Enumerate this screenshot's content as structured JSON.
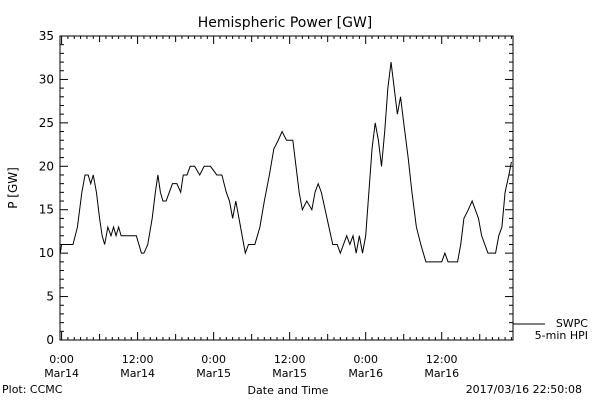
{
  "chart_data": {
    "type": "line",
    "title": "Hemispheric Power [GW]",
    "ylabel": "P [GW]",
    "xlabel": "Date and Time",
    "ylim": [
      0,
      35
    ],
    "xlim": [
      -0.25,
      71.25
    ],
    "yticks": [
      0,
      5,
      10,
      15,
      20,
      25,
      30,
      35
    ],
    "xtick_labels": [
      {
        "hour": 0,
        "time": "0:00",
        "day": "Mar14"
      },
      {
        "hour": 12,
        "time": "12:00",
        "day": "Mar14"
      },
      {
        "hour": 24,
        "time": "0:00",
        "day": "Mar15"
      },
      {
        "hour": 36,
        "time": "12:00",
        "day": "Mar15"
      },
      {
        "hour": 48,
        "time": "0:00",
        "day": "Mar16"
      },
      {
        "hour": 60,
        "time": "12:00",
        "day": "Mar16"
      }
    ],
    "legend": {
      "position": "bottom-right",
      "lines": [
        "SWPC",
        "5-min HPI"
      ]
    },
    "series": [
      {
        "name": "SWPC",
        "x_unit": "hours from 0:00 Mar14",
        "points": [
          [
            -0.2,
            10
          ],
          [
            0.0,
            11
          ],
          [
            1.0,
            11
          ],
          [
            1.8,
            11
          ],
          [
            2.5,
            13
          ],
          [
            3.2,
            17
          ],
          [
            3.7,
            19
          ],
          [
            4.2,
            19
          ],
          [
            4.6,
            18
          ],
          [
            5.0,
            19
          ],
          [
            5.5,
            17
          ],
          [
            6.0,
            14
          ],
          [
            6.4,
            12
          ],
          [
            6.8,
            11
          ],
          [
            7.3,
            13
          ],
          [
            7.8,
            12
          ],
          [
            8.2,
            13
          ],
          [
            8.6,
            12
          ],
          [
            9.0,
            13
          ],
          [
            9.4,
            12
          ],
          [
            10.0,
            12
          ],
          [
            11.0,
            12
          ],
          [
            11.8,
            12
          ],
          [
            12.6,
            10
          ],
          [
            13.0,
            10
          ],
          [
            13.6,
            11
          ],
          [
            14.3,
            14
          ],
          [
            14.8,
            17
          ],
          [
            15.2,
            19
          ],
          [
            15.6,
            17
          ],
          [
            16.0,
            16
          ],
          [
            16.5,
            16
          ],
          [
            17.0,
            17
          ],
          [
            17.5,
            18
          ],
          [
            18.2,
            18
          ],
          [
            18.8,
            17
          ],
          [
            19.2,
            19
          ],
          [
            19.8,
            19
          ],
          [
            20.3,
            20
          ],
          [
            21.0,
            20
          ],
          [
            21.8,
            19
          ],
          [
            22.5,
            20
          ],
          [
            23.5,
            20
          ],
          [
            24.5,
            19
          ],
          [
            25.3,
            19
          ],
          [
            26.0,
            17
          ],
          [
            26.5,
            16
          ],
          [
            27.0,
            14
          ],
          [
            27.5,
            16
          ],
          [
            28.0,
            14
          ],
          [
            28.5,
            12
          ],
          [
            29.0,
            10
          ],
          [
            29.5,
            11
          ],
          [
            30.5,
            11
          ],
          [
            31.3,
            13
          ],
          [
            32.0,
            16
          ],
          [
            32.8,
            19
          ],
          [
            33.5,
            22
          ],
          [
            34.2,
            23
          ],
          [
            34.8,
            24
          ],
          [
            35.5,
            23
          ],
          [
            36.5,
            23
          ],
          [
            37.0,
            20
          ],
          [
            37.5,
            17
          ],
          [
            38.0,
            15
          ],
          [
            38.7,
            16
          ],
          [
            39.5,
            15
          ],
          [
            40.0,
            17
          ],
          [
            40.5,
            18
          ],
          [
            41.0,
            17
          ],
          [
            41.6,
            15
          ],
          [
            42.2,
            13
          ],
          [
            42.8,
            11
          ],
          [
            43.5,
            11
          ],
          [
            44.0,
            10
          ],
          [
            44.5,
            11
          ],
          [
            45.0,
            12
          ],
          [
            45.5,
            11
          ],
          [
            46.0,
            12
          ],
          [
            46.5,
            10
          ],
          [
            47.0,
            12
          ],
          [
            47.5,
            10
          ],
          [
            48.0,
            12
          ],
          [
            48.5,
            17
          ],
          [
            49.0,
            22
          ],
          [
            49.5,
            25
          ],
          [
            50.0,
            23
          ],
          [
            50.5,
            20
          ],
          [
            51.0,
            24
          ],
          [
            51.5,
            29
          ],
          [
            52.0,
            32
          ],
          [
            52.5,
            29
          ],
          [
            53.0,
            26
          ],
          [
            53.5,
            28
          ],
          [
            54.0,
            25
          ],
          [
            54.7,
            21
          ],
          [
            55.3,
            17
          ],
          [
            56.0,
            13
          ],
          [
            56.7,
            11
          ],
          [
            57.5,
            9
          ],
          [
            58.5,
            9
          ],
          [
            59.5,
            9
          ],
          [
            60.0,
            9
          ],
          [
            60.5,
            10
          ],
          [
            61.0,
            9
          ],
          [
            62.5,
            9
          ],
          [
            63.0,
            11
          ],
          [
            63.5,
            14
          ],
          [
            64.2,
            15
          ],
          [
            64.8,
            16
          ],
          [
            65.3,
            15
          ],
          [
            65.8,
            14
          ],
          [
            66.3,
            12
          ],
          [
            66.8,
            11
          ],
          [
            67.3,
            10
          ],
          [
            68.5,
            10
          ],
          [
            69.0,
            12
          ],
          [
            69.5,
            13
          ],
          [
            70.0,
            17
          ],
          [
            70.6,
            19
          ],
          [
            71.0,
            20.5
          ]
        ]
      }
    ]
  },
  "footer": {
    "plot_label": "Plot: CCMC",
    "timestamp": "2017/03/16 22:50:08"
  }
}
